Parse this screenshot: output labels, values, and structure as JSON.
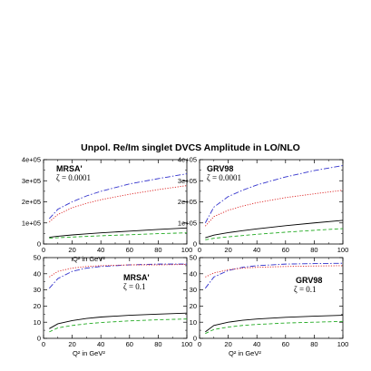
{
  "title": "Unpol. Re/Im singlet DVCS Amplitude in LO/NLO",
  "chart_data": [
    {
      "type": "line",
      "label": "MRSA'",
      "annotation": "ζ = 0.0001",
      "xlabel": "Q² in GeV²",
      "xlim": [
        0,
        100
      ],
      "ylim": [
        0,
        400000
      ],
      "xticks": [
        "0",
        "20",
        "40",
        "60",
        "80",
        "100"
      ],
      "yticks": [
        "0",
        "1e+05",
        "2e+05",
        "3e+05",
        "4e+05"
      ],
      "x": [
        4,
        10,
        20,
        30,
        40,
        60,
        80,
        100
      ],
      "series": [
        {
          "color": "#3333cc",
          "style": "dashdot",
          "values": [
            120000,
            165000,
            200000,
            228000,
            250000,
            285000,
            310000,
            333000
          ]
        },
        {
          "color": "#dd2222",
          "style": "dotted",
          "values": [
            105000,
            140000,
            172000,
            193000,
            210000,
            236000,
            258000,
            277000
          ]
        },
        {
          "color": "#000000",
          "style": "solid",
          "values": [
            32000,
            37000,
            43000,
            48000,
            53000,
            61000,
            69000,
            76000
          ]
        },
        {
          "color": "#22aa22",
          "style": "dashed",
          "values": [
            28000,
            30000,
            33000,
            36000,
            39000,
            44000,
            49000,
            53000
          ]
        }
      ]
    },
    {
      "type": "line",
      "label": "GRV98",
      "annotation": "ζ = 0.0001",
      "xlabel": "",
      "xlim": [
        0,
        100
      ],
      "ylim": [
        0,
        400000
      ],
      "xticks": [
        "0",
        "20",
        "40",
        "60",
        "80",
        "100"
      ],
      "yticks": [
        "0",
        "1e+05",
        "2e+05",
        "3e+05",
        "4e+05"
      ],
      "x": [
        4,
        10,
        20,
        30,
        40,
        60,
        80,
        100
      ],
      "series": [
        {
          "color": "#3333cc",
          "style": "dashdot",
          "values": [
            100000,
            175000,
            225000,
            255000,
            280000,
            318000,
            348000,
            372000
          ]
        },
        {
          "color": "#dd2222",
          "style": "dotted",
          "values": [
            85000,
            130000,
            160000,
            180000,
            196000,
            220000,
            238000,
            255000
          ]
        },
        {
          "color": "#000000",
          "style": "solid",
          "values": [
            30000,
            42000,
            54000,
            63000,
            72000,
            87000,
            100000,
            112000
          ]
        },
        {
          "color": "#22aa22",
          "style": "dashed",
          "values": [
            20000,
            27000,
            34000,
            40000,
            46000,
            56000,
            65000,
            73000
          ]
        }
      ]
    },
    {
      "type": "line",
      "label": "MRSA'",
      "annotation": "ζ = 0.1",
      "xlabel": "Q² in GeV²",
      "xlim": [
        0,
        100
      ],
      "ylim": [
        0,
        50
      ],
      "xticks": [
        "0",
        "20",
        "40",
        "60",
        "80",
        "100"
      ],
      "yticks": [
        "0",
        "10",
        "20",
        "30",
        "40",
        "50"
      ],
      "x": [
        4,
        10,
        20,
        30,
        40,
        60,
        80,
        100
      ],
      "series": [
        {
          "color": "#3333cc",
          "style": "dashdot",
          "values": [
            31,
            37,
            41.5,
            43.5,
            44.5,
            45.5,
            46,
            46
          ]
        },
        {
          "color": "#dd2222",
          "style": "dotted",
          "values": [
            38,
            41.5,
            43.5,
            44.5,
            45,
            45.5,
            45.5,
            45.8
          ]
        },
        {
          "color": "#000000",
          "style": "solid",
          "values": [
            6,
            9,
            11,
            12.3,
            13.2,
            14.3,
            15,
            15.6
          ]
        },
        {
          "color": "#22aa22",
          "style": "dashed",
          "values": [
            4,
            6.5,
            8,
            9,
            9.8,
            10.8,
            11.5,
            12
          ]
        }
      ]
    },
    {
      "type": "line",
      "label": "GRV98",
      "annotation": "ζ = 0.1",
      "xlabel": "Q² in GeV²",
      "xlim": [
        0,
        100
      ],
      "ylim": [
        0,
        50
      ],
      "xticks": [
        "0",
        "20",
        "40",
        "60",
        "80",
        "100"
      ],
      "yticks": [
        "0",
        "10",
        "20",
        "30",
        "40",
        "50"
      ],
      "x": [
        4,
        10,
        20,
        30,
        40,
        60,
        80,
        100
      ],
      "series": [
        {
          "color": "#3333cc",
          "style": "dashdot",
          "values": [
            31,
            38,
            42,
            44,
            45,
            46,
            46.3,
            46.5
          ]
        },
        {
          "color": "#dd2222",
          "style": "dotted",
          "values": [
            38,
            40.5,
            42.5,
            43.5,
            44,
            44.5,
            44.8,
            45
          ]
        },
        {
          "color": "#000000",
          "style": "solid",
          "values": [
            4,
            8,
            10,
            11.2,
            12,
            13,
            13.7,
            14.3
          ]
        },
        {
          "color": "#22aa22",
          "style": "dashed",
          "values": [
            3,
            5.5,
            7,
            8,
            8.6,
            9.5,
            10,
            10.5
          ]
        }
      ]
    }
  ]
}
